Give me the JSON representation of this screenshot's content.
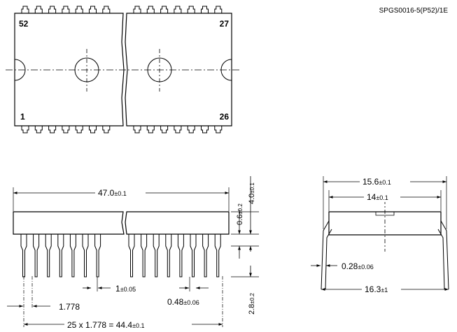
{
  "drawing_code": "SPGS0016-5(P52)/1E",
  "top_view": {
    "pin_top_left": "52",
    "pin_top_right": "27",
    "pin_bottom_left": "1",
    "pin_bottom_right": "26"
  },
  "front_view": {
    "body_length": "47.0",
    "body_length_tol": "±0.1",
    "standoff": "0.6",
    "standoff_tol": "±0.2",
    "body_height": "4.0",
    "body_height_tol": "±0.1",
    "lead_length": "2.8",
    "lead_length_tol": "±0.2",
    "lead_width_upper": "1",
    "lead_width_upper_tol": "±0.05",
    "lead_width": "0.48",
    "lead_width_tol": "±0.06",
    "pitch": "1.778",
    "span_expr": "25 x 1.778 = 44.4",
    "span_tol": "±0.1"
  },
  "side_view": {
    "outer_width": "15.6",
    "outer_width_tol": "±0.1",
    "body_width": "14",
    "body_width_tol": "±0.1",
    "lead_thickness": "0.28",
    "lead_thickness_tol": "±0.06",
    "lead_spread": "16.3",
    "lead_spread_tol": "±1"
  }
}
